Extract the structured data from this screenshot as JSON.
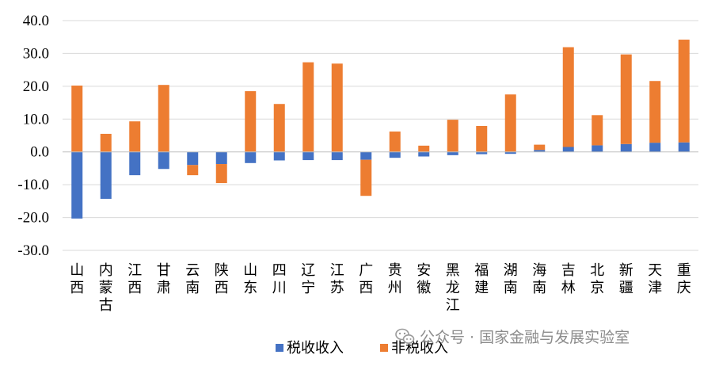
{
  "chart_data": {
    "type": "bar",
    "stacked": true,
    "categories": [
      "山西",
      "内蒙古",
      "江西",
      "甘肃",
      "云南",
      "陕西",
      "山东",
      "四川",
      "辽宁",
      "江苏",
      "广西",
      "贵州",
      "安徽",
      "黑龙江",
      "福建",
      "湖南",
      "海南",
      "吉林",
      "北京",
      "新疆",
      "天津",
      "重庆"
    ],
    "series": [
      {
        "name": "税收收入",
        "color": "#4472C4",
        "values": [
          -20.3,
          -14.3,
          -7.1,
          -5.2,
          -4.0,
          -3.7,
          -3.4,
          -2.6,
          -2.5,
          -2.5,
          -2.4,
          -1.8,
          -1.4,
          -1.0,
          -0.7,
          -0.6,
          0.6,
          1.5,
          2.0,
          2.4,
          2.8,
          2.9
        ]
      },
      {
        "name": "非税收入",
        "color": "#ED7D31",
        "values": [
          20.2,
          5.5,
          9.3,
          20.4,
          -3.1,
          -5.8,
          18.5,
          14.6,
          27.3,
          26.9,
          -11.0,
          6.2,
          1.9,
          9.8,
          7.9,
          17.5,
          1.6,
          30.4,
          9.2,
          27.3,
          18.8,
          31.3
        ]
      }
    ],
    "ylim": [
      -30,
      40
    ],
    "yticks": [
      "40.0",
      "30.0",
      "20.0",
      "10.0",
      "0.0",
      "-10.0",
      "-20.0",
      "-30.0"
    ],
    "ytick_values": [
      40,
      30,
      20,
      10,
      0,
      -10,
      -20,
      -30
    ],
    "grid": true,
    "legend_position": "bottom",
    "title": "",
    "xlabel": "",
    "ylabel": ""
  },
  "watermark": {
    "icon": "wechat-icon",
    "text": "公众号 · 国家金融与发展实验室"
  }
}
